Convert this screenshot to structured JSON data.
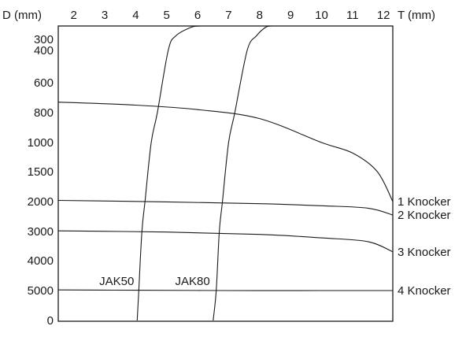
{
  "chart_data": {
    "type": "line",
    "x_axis": {
      "label": "T (mm)",
      "position": "top",
      "ticks": [
        2,
        3,
        4,
        5,
        6,
        7,
        8,
        9,
        10,
        11,
        12
      ],
      "range": [
        1.5,
        12.3
      ]
    },
    "y_axis": {
      "label": "D (mm)",
      "inverted": true,
      "ticks": [
        "300",
        "400",
        "600",
        "800",
        "1000",
        "1500",
        "2000",
        "3000",
        "4000",
        "5000",
        "0"
      ]
    },
    "grid": false,
    "knocker_series": [
      {
        "name": "1 Knocker",
        "points": [
          [
            1.5,
            730
          ],
          [
            4,
            750
          ],
          [
            6,
            780
          ],
          [
            8,
            840
          ],
          [
            10,
            1000
          ],
          [
            11,
            1180
          ],
          [
            11.8,
            1500
          ],
          [
            12.3,
            2000
          ]
        ]
      },
      {
        "name": "2 Knocker",
        "points": [
          [
            1.5,
            1980
          ],
          [
            5,
            2010
          ],
          [
            8,
            2070
          ],
          [
            10,
            2140
          ],
          [
            11.5,
            2220
          ],
          [
            12.3,
            2450
          ]
        ]
      },
      {
        "name": "3 Knocker",
        "points": [
          [
            1.5,
            2980
          ],
          [
            5,
            3020
          ],
          [
            8,
            3100
          ],
          [
            10,
            3220
          ],
          [
            11.5,
            3350
          ],
          [
            12.3,
            3700
          ]
        ]
      },
      {
        "name": "4 Knocker",
        "points": [
          [
            1.5,
            4980
          ],
          [
            4,
            4990
          ],
          [
            7,
            5080
          ],
          [
            10,
            5220
          ],
          [
            12.3,
            5600
          ]
        ]
      }
    ],
    "jak_series": [
      {
        "name": "JAK50",
        "points": [
          [
            4.05,
            0
          ],
          [
            4.1,
            5000
          ],
          [
            4.2,
            3000
          ],
          [
            4.3,
            2000
          ],
          [
            4.5,
            1000
          ],
          [
            4.7,
            800
          ],
          [
            5.05,
            400
          ],
          [
            5.3,
            340
          ],
          [
            5.8,
            305
          ],
          [
            6.1,
            300
          ]
        ]
      },
      {
        "name": "JAK80",
        "points": [
          [
            6.5,
            0
          ],
          [
            6.6,
            5000
          ],
          [
            6.7,
            3000
          ],
          [
            6.8,
            2000
          ],
          [
            7.0,
            1000
          ],
          [
            7.2,
            800
          ],
          [
            7.6,
            400
          ],
          [
            7.9,
            340
          ],
          [
            8.2,
            305
          ],
          [
            8.4,
            300
          ]
        ]
      }
    ]
  }
}
